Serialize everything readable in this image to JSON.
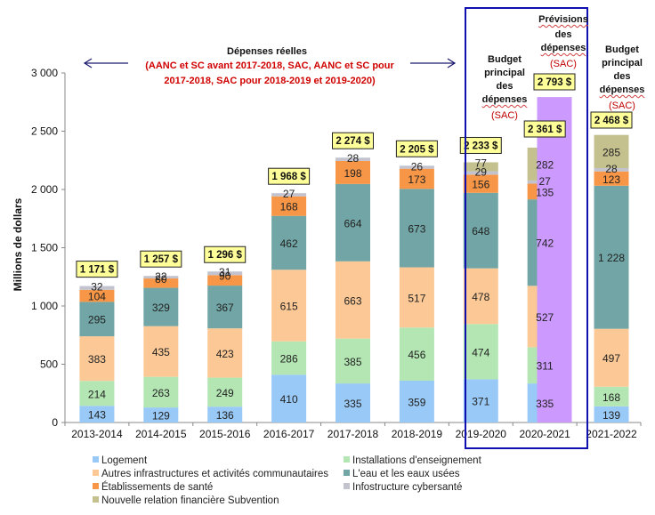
{
  "chart_data": {
    "type": "bar",
    "stacked": true,
    "title": "",
    "xlabel": "",
    "ylabel": "Millions de dollars",
    "ylim": [
      0,
      3000
    ],
    "yticks": [
      0,
      500,
      1000,
      1500,
      2000,
      2500,
      3000
    ],
    "ytick_labels": [
      "0",
      "500",
      "1 000",
      "1 500",
      "2 000",
      "2 500",
      "3 000"
    ],
    "categories": [
      "2013-2014",
      "2014-2015",
      "2015-2016",
      "2016-2017",
      "2017-2018",
      "2018-2019",
      "2019-2020",
      "2020-2021",
      "",
      "2021-2022"
    ],
    "series": [
      {
        "name": "Logement",
        "color": "#99c9f7",
        "values": [
          143,
          129,
          136,
          410,
          335,
          359,
          371,
          335,
          null,
          139
        ],
        "labels": [
          "143",
          "129",
          "136",
          "410",
          "335",
          "359",
          "371",
          "335",
          "",
          "139"
        ]
      },
      {
        "name": "Installations d'enseignement",
        "color": "#b3e6b3",
        "values": [
          214,
          263,
          249,
          286,
          385,
          456,
          474,
          311,
          null,
          168
        ],
        "labels": [
          "214",
          "263",
          "249",
          "286",
          "385",
          "456",
          "474",
          "311",
          "",
          "168"
        ]
      },
      {
        "name": "Autres infrastructures et activités communautaires",
        "color": "#fcc996",
        "values": [
          383,
          435,
          423,
          615,
          663,
          517,
          478,
          527,
          null,
          497
        ],
        "labels": [
          "383",
          "435",
          "423",
          "615",
          "663",
          "517",
          "478",
          "527",
          "",
          "497"
        ]
      },
      {
        "name": "L'eau et les eaux usées",
        "color": "#72a6a6",
        "values": [
          295,
          329,
          367,
          462,
          664,
          673,
          648,
          742,
          null,
          1228
        ],
        "labels": [
          "295",
          "329",
          "367",
          "462",
          "664",
          "673",
          "648",
          "742",
          "",
          "1 228"
        ]
      },
      {
        "name": "Établissements de santé",
        "color": "#f79646",
        "values": [
          104,
          80,
          90,
          168,
          198,
          173,
          156,
          135,
          null,
          123
        ],
        "labels": [
          "104",
          "80",
          "90",
          "168",
          "198",
          "173",
          "156",
          "135",
          "",
          "123"
        ]
      },
      {
        "name": "Infostructure cybersanté",
        "color": "#c3c3cf",
        "values": [
          32,
          22,
          31,
          27,
          28,
          26,
          29,
          27,
          null,
          28
        ],
        "labels": [
          "32",
          "22",
          "31",
          "27",
          "28",
          "26",
          "29",
          "27",
          "",
          "28"
        ]
      },
      {
        "name": "Nouvelle relation financière Subvention",
        "color": "#c4c18e",
        "values": [
          null,
          null,
          null,
          null,
          null,
          null,
          77,
          282,
          null,
          285
        ],
        "labels": [
          "",
          "",
          "",
          "",
          "",
          "",
          "77",
          "282",
          "",
          "285"
        ]
      },
      {
        "name": "Prévisions des dépenses",
        "color": "#cc99ff",
        "values": [
          null,
          null,
          null,
          null,
          null,
          null,
          null,
          null,
          2793,
          null
        ],
        "labels": [
          "",
          "",
          "",
          "",
          "",
          "",
          "",
          "",
          "",
          ""
        ],
        "in_legend": false
      }
    ],
    "totals": [
      "1 171 $",
      "1 257 $",
      "1 296 $",
      "1 968 $",
      "2 274 $",
      "2 205 $",
      "2 233 $",
      "2 361 $",
      "2 793 $",
      "2 468 $"
    ],
    "legend_position": "bottom",
    "grid": false
  },
  "annotations": {
    "actual_title": "Dépenses réelles",
    "actual_note_line1": "(AANC et SC avant 2017-2018, SAC, AANC et SC pour",
    "actual_note_line2": "2017-2018, SAC pour 2018-2019 et 2019-2020)",
    "budget_2020": {
      "l1": "Budget",
      "l2": "principal",
      "l3": "des",
      "l4": "dépenses",
      "sac": "(SAC)"
    },
    "forecast": {
      "l1": "Prévisions",
      "l2": "des",
      "l3": "dépenses",
      "sac": "(SAC)"
    },
    "budget_2021": {
      "l1": "Budget",
      "l2": "principal",
      "l3": "des",
      "l4": "dépenses",
      "sac": "(SAC)"
    }
  },
  "legend": [
    {
      "label": "Logement",
      "color": "#99c9f7"
    },
    {
      "label": "Installations d'enseignement",
      "color": "#b3e6b3"
    },
    {
      "label": "Autres infrastructures et activités communautaires",
      "color": "#fcc996"
    },
    {
      "label": "L'eau et les eaux usées",
      "color": "#72a6a6"
    },
    {
      "label": "Établissements de santé",
      "color": "#f79646"
    },
    {
      "label": "Infostructure cybersanté",
      "color": "#c3c3cf"
    },
    {
      "label": "Nouvelle relation financière Subvention",
      "color": "#c4c18e"
    }
  ],
  "colors": {
    "box_border": "#1010b0",
    "arrow": "#1a1a6e",
    "total_bg": "#ffff99"
  }
}
